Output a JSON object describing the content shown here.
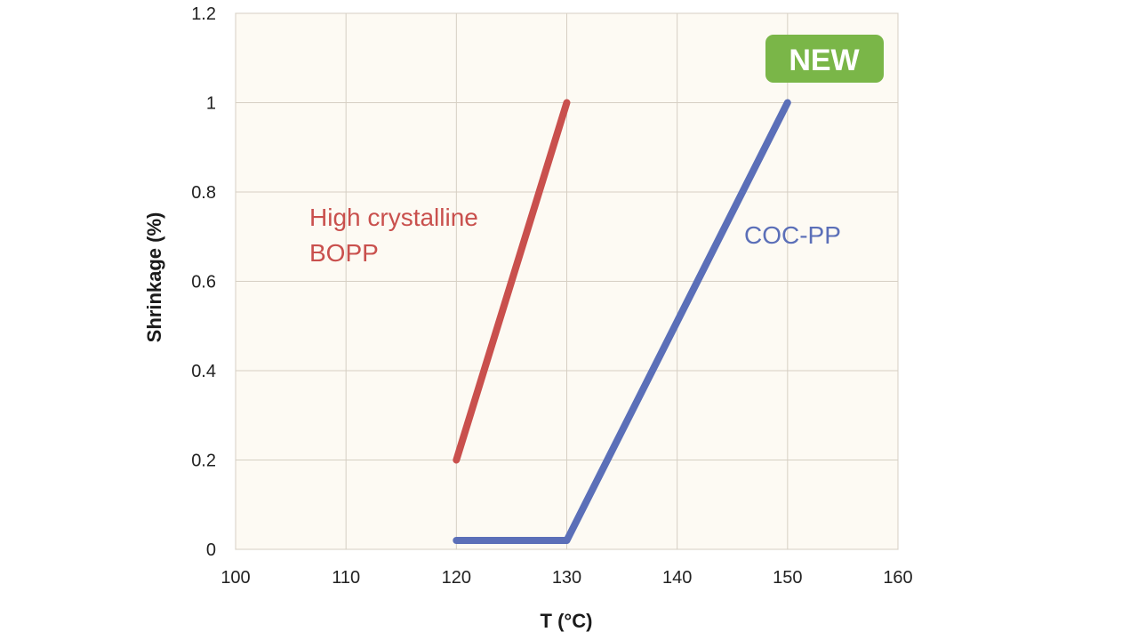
{
  "chart_data": {
    "type": "line",
    "title": "",
    "xlabel": "T (°C)",
    "ylabel": "Shrinkage (%)",
    "xlim": [
      100,
      160
    ],
    "ylim": [
      0,
      1.2
    ],
    "xticks": [
      100,
      110,
      120,
      130,
      140,
      150,
      160
    ],
    "yticks": [
      0,
      0.2,
      0.4,
      0.6,
      0.8,
      1,
      1.2
    ],
    "grid": true,
    "series": [
      {
        "name": "High crystalline BOPP",
        "label_lines": [
          "High crystalline",
          "BOPP"
        ],
        "color": "#c9504d",
        "points": [
          [
            120,
            0.2
          ],
          [
            130,
            1.0
          ]
        ]
      },
      {
        "name": "COC-PP",
        "label_lines": [
          "COC-PP"
        ],
        "color": "#5b6fb8",
        "points": [
          [
            120,
            0.02
          ],
          [
            130,
            0.02
          ],
          [
            150,
            1.0
          ]
        ]
      }
    ],
    "annotations": [
      {
        "text": "NEW",
        "color": "#7ab648"
      }
    ]
  }
}
